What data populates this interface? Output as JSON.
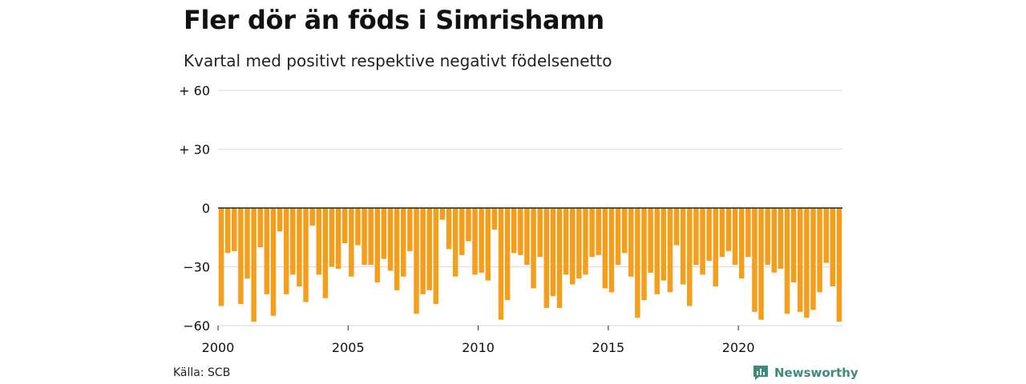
{
  "title": "Fler dör än föds i Simrishamn",
  "subtitle": "Kvartal med positivt respektive negativt födelsenetto",
  "source": "Källa: SCB",
  "brand": {
    "name": "Newsworthy",
    "color": "#3c8c7a"
  },
  "colors": {
    "bar": "#f59e1b",
    "grid": "#dddddd",
    "zero_line": "#222222"
  },
  "chart_data": {
    "type": "bar",
    "y_tick_labels": [
      "+ 60",
      "+ 30",
      "0",
      "−30",
      "−60"
    ],
    "y_ticks": [
      60,
      30,
      0,
      -30,
      -60
    ],
    "ylim": [
      -60,
      60
    ],
    "x_tick_labels": [
      "2000",
      "2005",
      "2010",
      "2015",
      "2020"
    ],
    "x_ticks": [
      2000,
      2005,
      2010,
      2015,
      2020
    ],
    "first_quarter": "2000-Q1",
    "values": [
      -50,
      -23,
      -22,
      -49,
      -36,
      -58,
      -20,
      -44,
      -55,
      -12,
      -44,
      -34,
      -40,
      -48,
      -9,
      -34,
      -46,
      -30,
      -31,
      -18,
      -35,
      -19,
      -29,
      -29,
      -38,
      -26,
      -32,
      -42,
      -35,
      -22,
      -54,
      -44,
      -42,
      -49,
      -6,
      -21,
      -35,
      -24,
      -17,
      -34,
      -33,
      -37,
      -11,
      -57,
      -47,
      -23,
      -24,
      -29,
      -41,
      -25,
      -51,
      -45,
      -51,
      -34,
      -39,
      -36,
      -34,
      -25,
      -24,
      -41,
      -43,
      -29,
      -23,
      -35,
      -56,
      -47,
      -33,
      -44,
      -37,
      -43,
      -19,
      -39,
      -50,
      -29,
      -34,
      -27,
      -40,
      -25,
      -22,
      -29,
      -36,
      -25,
      -53,
      -57,
      -29,
      -33,
      -31,
      -54,
      -38,
      -53,
      -56,
      -52,
      -43,
      -28,
      -40,
      -58
    ]
  }
}
